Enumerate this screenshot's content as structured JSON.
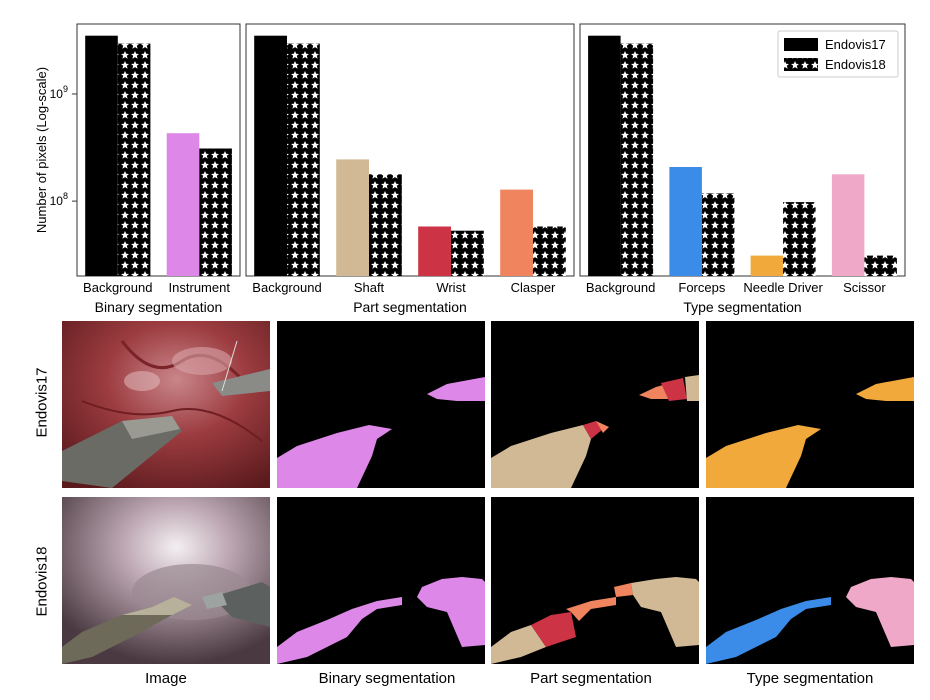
{
  "chart_data": [
    {
      "type": "bar",
      "title": "Binary segmentation",
      "ylabel": "Number of pixels (Log-scale)",
      "yscale": "log",
      "ylim": [
        20000000,
        4500000000
      ],
      "yticks": [
        "10^9",
        "10^8"
      ],
      "categories": [
        "Background",
        "Instrument"
      ],
      "colors": [
        "#000000",
        "#dd88e8"
      ],
      "series": [
        {
          "name": "Endovis17",
          "values": [
            3500000000,
            430000000
          ]
        },
        {
          "name": "Endovis18",
          "values": [
            2950000000,
            310000000
          ]
        }
      ]
    },
    {
      "type": "bar",
      "title": "Part segmentation",
      "yscale": "log",
      "ylim": [
        20000000,
        4500000000
      ],
      "categories": [
        "Background",
        "Shaft",
        "Wrist",
        "Clasper"
      ],
      "colors": [
        "#000000",
        "#d2b996",
        "#cc3344",
        "#ef845e"
      ],
      "series": [
        {
          "name": "Endovis17",
          "values": [
            3500000000,
            245000000,
            58000000,
            128000000
          ]
        },
        {
          "name": "Endovis18",
          "values": [
            2950000000,
            178000000,
            53000000,
            58000000
          ]
        }
      ]
    },
    {
      "type": "bar",
      "title": "Type segmentation",
      "yscale": "log",
      "ylim": [
        20000000,
        4500000000
      ],
      "categories": [
        "Background",
        "Forceps",
        "Needle Driver",
        "Scissor"
      ],
      "colors": [
        "#000000",
        "#3a8ce8",
        "#f2a93b",
        "#f0a8c8"
      ],
      "legend": {
        "placement": "top-right",
        "entries": [
          "Endovis17",
          "Endovis18"
        ]
      },
      "series": [
        {
          "name": "Endovis17",
          "values": [
            3500000000,
            208000000,
            31000000,
            178000000
          ]
        },
        {
          "name": "Endovis18",
          "values": [
            2950000000,
            118000000,
            98000000,
            31000000
          ]
        }
      ]
    }
  ],
  "figure": {
    "row_labels": [
      "Endovis17",
      "Endovis18"
    ],
    "column_labels": [
      "Image",
      "Binary segmentation",
      "Part segmentation",
      "Type segmentation"
    ],
    "colors": {
      "binary": "#dd88e8",
      "shaft": "#d2b996",
      "wrist": "#cc3344",
      "clasper": "#ef845e",
      "forceps": "#3a8ce8",
      "needle_driver": "#f2a93b",
      "scissor": "#f0a8c8",
      "mask_bg": "#000000"
    }
  }
}
